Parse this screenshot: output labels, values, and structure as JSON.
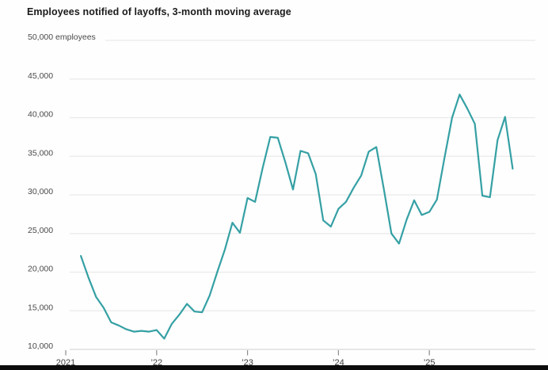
{
  "page": {
    "background_color": "#ffffff",
    "bottom_bar_color": "#0c0c0c"
  },
  "chart_data": {
    "type": "line",
    "title": "Employees notified of layoffs, 3-month moving average",
    "unit_label": "employees",
    "line_color": "#35A0A4",
    "grid": "horizontal",
    "legend": "none",
    "xlabel": "",
    "ylabel": "",
    "ylim": [
      10000,
      50000
    ],
    "x_tick_labels": [
      "2021",
      "’22",
      "’23",
      "’24",
      "’25"
    ],
    "x_tick_months": [
      "2021-01",
      "2022-01",
      "2023-01",
      "2024-01",
      "2025-01"
    ],
    "y_ticks": [
      {
        "value": 50000,
        "label": "50,000 employees"
      },
      {
        "value": 45000,
        "label": "45,000"
      },
      {
        "value": 40000,
        "label": "40,000"
      },
      {
        "value": 35000,
        "label": "35,000"
      },
      {
        "value": 30000,
        "label": "30,000"
      },
      {
        "value": 25000,
        "label": "25,000"
      },
      {
        "value": 20000,
        "label": "20,000"
      },
      {
        "value": 15000,
        "label": "15,000"
      },
      {
        "value": 10000,
        "label": "10,000"
      }
    ],
    "x": [
      "2021-03",
      "2021-04",
      "2021-05",
      "2021-06",
      "2021-07",
      "2021-08",
      "2021-09",
      "2021-10",
      "2021-11",
      "2021-12",
      "2022-01",
      "2022-02",
      "2022-03",
      "2022-04",
      "2022-05",
      "2022-06",
      "2022-07",
      "2022-08",
      "2022-09",
      "2022-10",
      "2022-11",
      "2022-12",
      "2023-01",
      "2023-02",
      "2023-03",
      "2023-04",
      "2023-05",
      "2023-06",
      "2023-07",
      "2023-08",
      "2023-09",
      "2023-10",
      "2023-11",
      "2023-12",
      "2024-01",
      "2024-02",
      "2024-03",
      "2024-04",
      "2024-05",
      "2024-06",
      "2024-07",
      "2024-08",
      "2024-09",
      "2024-10",
      "2024-11",
      "2024-12",
      "2025-01",
      "2025-02",
      "2025-03",
      "2025-04",
      "2025-05",
      "2025-06",
      "2025-07",
      "2025-08",
      "2025-09",
      "2025-10",
      "2025-11",
      "2025-12"
    ],
    "values": [
      22100,
      19300,
      16800,
      15400,
      13500,
      13100,
      12600,
      12300,
      12400,
      12300,
      12500,
      11400,
      13300,
      14500,
      15900,
      14900,
      14800,
      17000,
      20000,
      22900,
      26400,
      25100,
      29600,
      29100,
      33500,
      37500,
      37400,
      34200,
      30700,
      35700,
      35400,
      32700,
      26700,
      25900,
      28200,
      29100,
      30900,
      32500,
      35600,
      36200,
      30700,
      25000,
      23700,
      26800,
      29300,
      27400,
      27800,
      29400,
      34800,
      40000,
      43000,
      41200,
      39200,
      29900,
      29700,
      37100,
      40100,
      33400
    ]
  }
}
